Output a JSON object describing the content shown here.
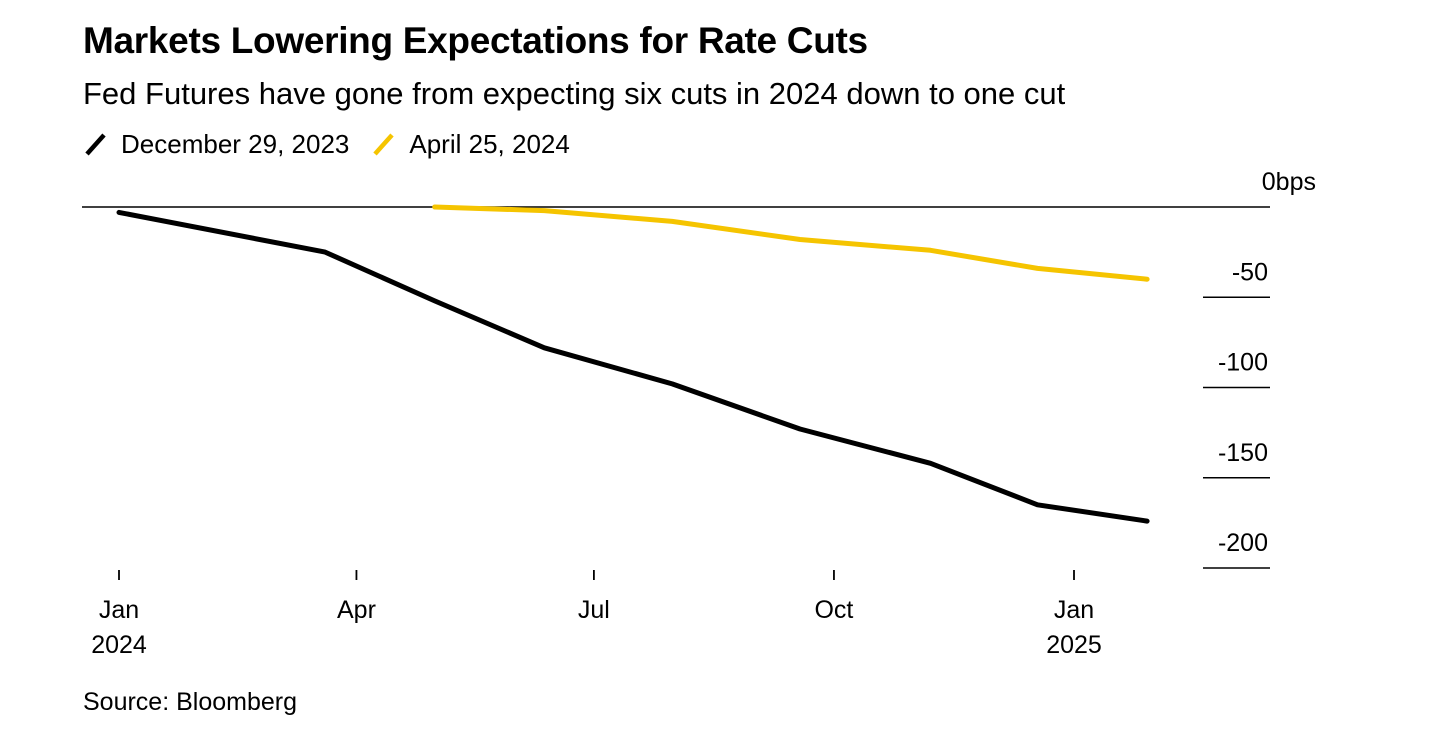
{
  "title": "Markets Lowering Expectations for Rate Cuts",
  "subtitle": "Fed Futures have gone from expecting six cuts in 2024 down to one cut",
  "source": "Source: Bloomberg",
  "chart_data": {
    "type": "line",
    "xlim": [
      "2023-12-15",
      "2025-03-01"
    ],
    "ylim": [
      -200,
      0
    ],
    "y_unit": "bps",
    "y_ticks": [
      0,
      -50,
      -100,
      -150,
      -200
    ],
    "y_tick_labels": [
      "0",
      "-50",
      "-100",
      "-150",
      "-200"
    ],
    "x_ticks": [
      {
        "date": "2024-01-01",
        "label": "Jan",
        "year": "2024"
      },
      {
        "date": "2024-04-01",
        "label": "Apr",
        "year": ""
      },
      {
        "date": "2024-07-01",
        "label": "Jul",
        "year": ""
      },
      {
        "date": "2024-10-01",
        "label": "Oct",
        "year": ""
      },
      {
        "date": "2025-01-01",
        "label": "Jan",
        "year": "2025"
      }
    ],
    "legend_position": "top-left",
    "grid": false,
    "series": [
      {
        "name": "December 29, 2023",
        "color": "#000000",
        "points": [
          {
            "x": "2024-01-01",
            "y": -3
          },
          {
            "x": "2024-03-20",
            "y": -25
          },
          {
            "x": "2024-05-01",
            "y": -52
          },
          {
            "x": "2024-06-12",
            "y": -78
          },
          {
            "x": "2024-07-31",
            "y": -98
          },
          {
            "x": "2024-09-18",
            "y": -123
          },
          {
            "x": "2024-11-07",
            "y": -142
          },
          {
            "x": "2024-12-18",
            "y": -165
          },
          {
            "x": "2025-01-29",
            "y": -174
          }
        ]
      },
      {
        "name": "April 25, 2024",
        "color": "#F5C400",
        "points": [
          {
            "x": "2024-05-01",
            "y": 0
          },
          {
            "x": "2024-06-12",
            "y": -2
          },
          {
            "x": "2024-07-31",
            "y": -8
          },
          {
            "x": "2024-09-18",
            "y": -18
          },
          {
            "x": "2024-11-07",
            "y": -24
          },
          {
            "x": "2024-12-18",
            "y": -34
          },
          {
            "x": "2025-01-29",
            "y": -40
          }
        ]
      }
    ]
  }
}
